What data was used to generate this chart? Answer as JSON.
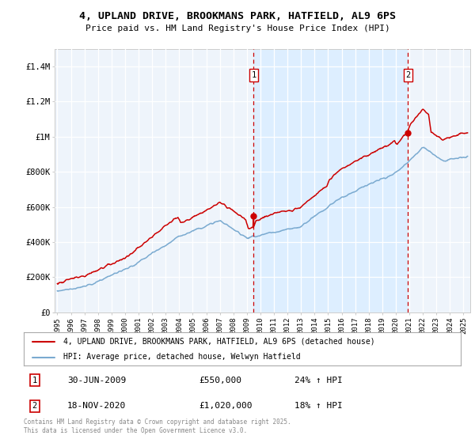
{
  "title": "4, UPLAND DRIVE, BROOKMANS PARK, HATFIELD, AL9 6PS",
  "subtitle": "Price paid vs. HM Land Registry's House Price Index (HPI)",
  "legend_line1": "4, UPLAND DRIVE, BROOKMANS PARK, HATFIELD, AL9 6PS (detached house)",
  "legend_line2": "HPI: Average price, detached house, Welwyn Hatfield",
  "annotation1_label": "1",
  "annotation1_date": "30-JUN-2009",
  "annotation1_price": "£550,000",
  "annotation1_hpi": "24% ↑ HPI",
  "annotation2_label": "2",
  "annotation2_date": "18-NOV-2020",
  "annotation2_price": "£1,020,000",
  "annotation2_hpi": "18% ↑ HPI",
  "footer": "Contains HM Land Registry data © Crown copyright and database right 2025.\nThis data is licensed under the Open Government Licence v3.0.",
  "red_line_color": "#cc0000",
  "blue_line_color": "#7aaad0",
  "vline_color": "#cc0000",
  "plot_bg": "#eef4fb",
  "shade_color": "#ddeeff",
  "ylim": [
    0,
    1500000
  ],
  "xlim_start": 1994.8,
  "xlim_end": 2025.5,
  "sale1_year": 2009.5,
  "sale2_year": 2020.9,
  "sale1_price": 550000,
  "sale2_price": 1020000
}
